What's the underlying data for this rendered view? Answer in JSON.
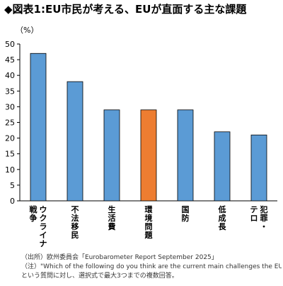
{
  "title": "◆図表1:EU市民が考える、EUが直面する主な課題",
  "chart_data": {
    "type": "bar",
    "unit_label": "（%）",
    "categories": [
      "ウクライナ戦争",
      "不法移民",
      "生活費",
      "環境問題",
      "国防",
      "低成長",
      "犯罪・テロ"
    ],
    "values": [
      47,
      38,
      29,
      29,
      29,
      22,
      21
    ],
    "ylim": [
      0,
      50
    ],
    "yticks": [
      0,
      5,
      10,
      15,
      20,
      25,
      30,
      35,
      40,
      45,
      50
    ],
    "grid": false,
    "bar_color": "#5B9BD5",
    "highlight_color": "#ED7D31",
    "highlight_index": 3
  },
  "notes": [
    "（出所）欧州委員会「Eurobarometer Report September 2025」",
    "（注）\"Which of the following do you think are the current main challenges the EU is facing?\"",
    "という質問に対し、選択式で最大3つまでの複数回答。"
  ]
}
